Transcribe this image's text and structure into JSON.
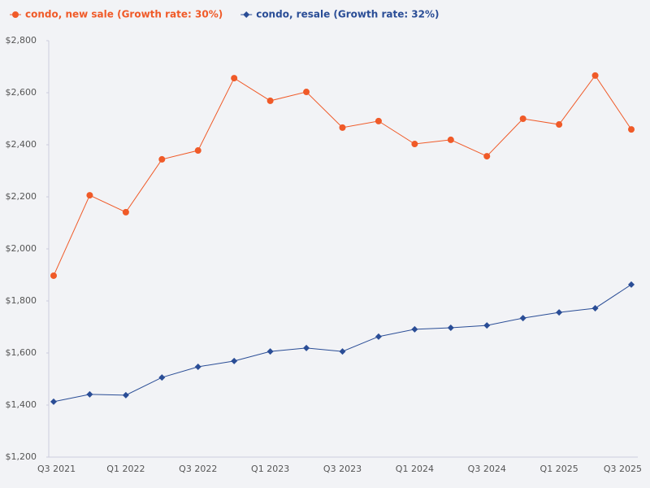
{
  "chart_data": {
    "type": "line",
    "categories": [
      "Q3 2021",
      null,
      "Q1 2022",
      null,
      "Q3 2022",
      null,
      "Q1 2023",
      null,
      "Q3 2023",
      null,
      "Q1 2024",
      null,
      "Q3 2024",
      null,
      "Q1 2025",
      null,
      "Q3 2025"
    ],
    "series": [
      {
        "name": "condo, new sale (Growth rate: 30%)",
        "color": "#f05a28",
        "marker": "circle",
        "values": [
          1897,
          2206,
          2141,
          2344,
          2378,
          2656,
          2569,
          2603,
          2466,
          2491,
          2403,
          2419,
          2356,
          2500,
          2478,
          2666,
          2459
        ]
      },
      {
        "name": "condo, resale (Growth rate: 32%)",
        "color": "#2a4d96",
        "marker": "diamond",
        "values": [
          1413,
          1441,
          1438,
          1506,
          1547,
          1569,
          1606,
          1619,
          1606,
          1663,
          1691,
          1697,
          1706,
          1734,
          1756,
          1772,
          1863
        ]
      }
    ],
    "ylim": [
      1200,
      2800
    ],
    "yticks": [
      {
        "value": 1200,
        "label": "$1,200"
      },
      {
        "value": 1400,
        "label": "$1,400"
      },
      {
        "value": 1600,
        "label": "$1,600"
      },
      {
        "value": 1800,
        "label": "$1,800"
      },
      {
        "value": 2000,
        "label": "$2,000"
      },
      {
        "value": 2200,
        "label": "$2,200"
      },
      {
        "value": 2400,
        "label": "$2,400"
      },
      {
        "value": 2600,
        "label": "$2,600"
      },
      {
        "value": 2800,
        "label": "$2,800"
      }
    ],
    "grid": false,
    "legend": "top"
  }
}
